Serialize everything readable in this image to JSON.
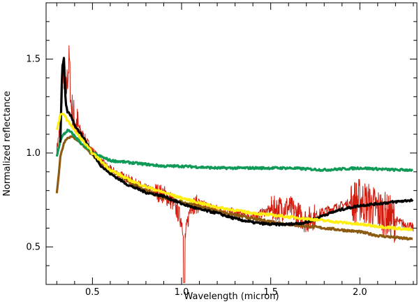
{
  "chart_data": {
    "type": "line",
    "title": "",
    "xlabel": "Wavelength (micron)",
    "ylabel": "Normalized reflectance",
    "xlim": [
      0.24,
      2.32
    ],
    "ylim": [
      0.3,
      1.8
    ],
    "xticks": [
      {
        "value": 0.5,
        "label": "0.5"
      },
      {
        "value": 1.0,
        "label": "1.0"
      },
      {
        "value": 1.5,
        "label": "1.5"
      },
      {
        "value": 2.0,
        "label": "2.0"
      }
    ],
    "yticks": [
      {
        "value": 0.5,
        "label": "0.5"
      },
      {
        "value": 1.0,
        "label": "1.0"
      },
      {
        "value": 1.5,
        "label": "1.5"
      }
    ],
    "grid": false,
    "legend": "none",
    "series": [
      {
        "color": "#d21a0c",
        "style": "noisy",
        "x": [
          0.3,
          0.32,
          0.33,
          0.34,
          0.35,
          0.36,
          0.37,
          0.38,
          0.4,
          0.45,
          0.5,
          0.55,
          0.6,
          0.7,
          0.8,
          0.9,
          0.95,
          1.0,
          1.02,
          1.05,
          1.1,
          1.2,
          1.3,
          1.4,
          1.5,
          1.6,
          1.7,
          1.8,
          1.9,
          2.0,
          2.1,
          2.2,
          2.3
        ],
        "values": [
          1.02,
          1.15,
          1.35,
          1.42,
          1.3,
          1.4,
          1.5,
          1.25,
          1.18,
          1.09,
          1.01,
          0.95,
          0.91,
          0.86,
          0.81,
          0.78,
          0.74,
          0.64,
          0.55,
          0.72,
          0.73,
          0.7,
          0.68,
          0.66,
          0.7,
          0.71,
          0.64,
          0.69,
          0.72,
          0.75,
          0.7,
          0.64,
          0.6
        ]
      },
      {
        "color": "#000000",
        "style": "thick",
        "x": [
          0.32,
          0.33,
          0.34,
          0.35,
          0.36,
          0.38,
          0.4,
          0.45,
          0.5,
          0.55,
          0.6,
          0.7,
          0.8,
          0.9,
          1.0,
          1.1,
          1.2,
          1.3,
          1.4,
          1.5,
          1.6,
          1.7,
          1.8,
          1.9,
          2.0,
          2.1,
          2.2,
          2.3
        ],
        "values": [
          1.05,
          1.45,
          1.5,
          1.26,
          1.22,
          1.2,
          1.15,
          1.08,
          1.0,
          0.93,
          0.89,
          0.83,
          0.79,
          0.77,
          0.73,
          0.7,
          0.68,
          0.65,
          0.63,
          0.62,
          0.62,
          0.63,
          0.67,
          0.7,
          0.72,
          0.73,
          0.74,
          0.75
        ]
      },
      {
        "color": "#ffee10",
        "style": "thick",
        "x": [
          0.3,
          0.32,
          0.34,
          0.36,
          0.38,
          0.4,
          0.45,
          0.5,
          0.6,
          0.7,
          0.8,
          0.9,
          1.0,
          1.2,
          1.4,
          1.6,
          1.8,
          2.0,
          2.2,
          2.3
        ],
        "values": [
          1.12,
          1.2,
          1.21,
          1.17,
          1.15,
          1.12,
          1.06,
          1.0,
          0.91,
          0.86,
          0.82,
          0.79,
          0.76,
          0.71,
          0.68,
          0.66,
          0.64,
          0.62,
          0.6,
          0.59
        ]
      },
      {
        "color": "#0f9b57",
        "style": "thick",
        "x": [
          0.3,
          0.32,
          0.34,
          0.36,
          0.38,
          0.4,
          0.45,
          0.5,
          0.55,
          0.6,
          0.7,
          0.8,
          0.9,
          1.0,
          1.2,
          1.4,
          1.6,
          1.8,
          2.0,
          2.2,
          2.3
        ],
        "values": [
          0.98,
          1.07,
          1.1,
          1.12,
          1.11,
          1.09,
          1.04,
          1.0,
          0.98,
          0.96,
          0.95,
          0.94,
          0.93,
          0.93,
          0.92,
          0.92,
          0.92,
          0.91,
          0.92,
          0.91,
          0.91
        ]
      },
      {
        "color": "#8c5a10",
        "style": "thick",
        "x": [
          0.3,
          0.32,
          0.34,
          0.36,
          0.38,
          0.4,
          0.45,
          0.5,
          0.6,
          0.7,
          0.8,
          0.9,
          1.0,
          1.2,
          1.4,
          1.6,
          1.8,
          2.0,
          2.1,
          2.2,
          2.3
        ],
        "values": [
          0.78,
          0.98,
          1.05,
          1.08,
          1.09,
          1.08,
          1.04,
          0.99,
          0.91,
          0.85,
          0.8,
          0.76,
          0.74,
          0.69,
          0.65,
          0.62,
          0.6,
          0.58,
          0.56,
          0.55,
          0.54
        ]
      }
    ]
  }
}
